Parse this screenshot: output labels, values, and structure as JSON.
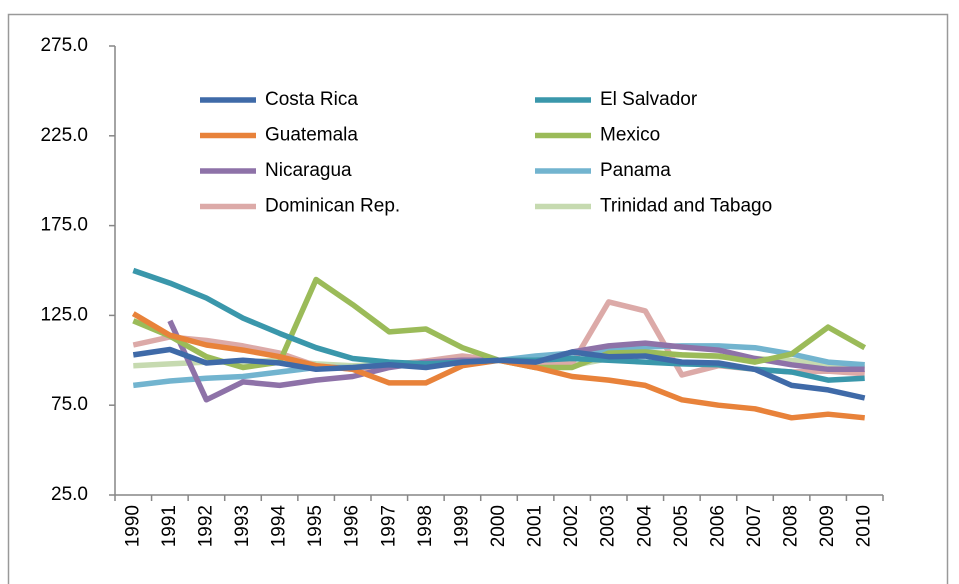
{
  "chart_data": {
    "type": "line",
    "categories": [
      "1990",
      "1991",
      "1992",
      "1993",
      "1994",
      "1995",
      "1996",
      "1997",
      "1998",
      "1999",
      "2000",
      "2001",
      "2002",
      "2003",
      "2004",
      "2005",
      "2006",
      "2007",
      "2008",
      "2009",
      "2010"
    ],
    "ylim": [
      25,
      275
    ],
    "yticks": [
      {
        "value": 25,
        "label": "25.0"
      },
      {
        "value": 75,
        "label": "75.0"
      },
      {
        "value": 125,
        "label": "125.0"
      },
      {
        "value": 175,
        "label": "175.0"
      },
      {
        "value": 225,
        "label": "225.0"
      },
      {
        "value": 275,
        "label": "275.0"
      }
    ],
    "grid": false,
    "legend": "top",
    "series": [
      {
        "name": "Costa Rica",
        "color": "#3f6aa8",
        "values": [
          103,
          106,
          98.5,
          100,
          98.5,
          95,
          96,
          97.5,
          96,
          99,
          100,
          99,
          104.6,
          102,
          102.4,
          99,
          98.5,
          95,
          86,
          83.5,
          79
        ]
      },
      {
        "name": "El Salvador",
        "color": "#3a97ab",
        "values": [
          150,
          143,
          134.7,
          123.5,
          115,
          107,
          101,
          99,
          98,
          99,
          100,
          100,
          101,
          100,
          99,
          98,
          97.5,
          95,
          93.5,
          89,
          90
        ]
      },
      {
        "name": "Guatemala",
        "color": "#e8823a",
        "values": [
          126,
          114,
          108.5,
          105.7,
          102,
          97,
          95,
          87.4,
          87.4,
          97,
          100,
          96,
          91,
          89,
          86,
          78,
          75,
          73,
          68,
          70,
          68
        ]
      },
      {
        "name": "Mexico",
        "color": "#9bbb59",
        "values": [
          122,
          113.5,
          102,
          96,
          99,
          145,
          131,
          115.8,
          117.4,
          107,
          100,
          96,
          96,
          104,
          104.6,
          103,
          102.4,
          99,
          103.5,
          118.5,
          107
        ]
      },
      {
        "name": "Nicaragua",
        "color": "#8e72a8",
        "values": [
          null,
          122,
          78,
          88,
          86,
          89,
          91,
          96,
          99,
          100,
          100,
          99,
          104.6,
          108,
          109.6,
          107.4,
          105.7,
          101,
          97.5,
          95,
          95
        ]
      },
      {
        "name": "Panama",
        "color": "#72b4cf",
        "values": [
          86,
          88.5,
          90,
          91,
          93.5,
          96,
          96,
          98,
          98.5,
          100,
          100,
          102.4,
          104,
          105.7,
          107.4,
          108,
          108,
          107,
          103.5,
          99,
          97.5
        ]
      },
      {
        "name": "Dominican Rep.",
        "color": "#dcaaa8",
        "values": [
          108.5,
          113,
          111,
          108,
          104,
          97,
          95,
          97.5,
          99.6,
          102.4,
          100,
          98,
          98,
          132.5,
          127.5,
          91.8,
          97,
          95,
          93.5,
          94,
          92.5
        ]
      },
      {
        "name": "Trinidad and Tabago",
        "color": "#c6dab0",
        "values": [
          97,
          98,
          99,
          99,
          100,
          98,
          97,
          98,
          99,
          100,
          100,
          99,
          97,
          101,
          103,
          103,
          102,
          101,
          100,
          98,
          96
        ]
      }
    ]
  }
}
